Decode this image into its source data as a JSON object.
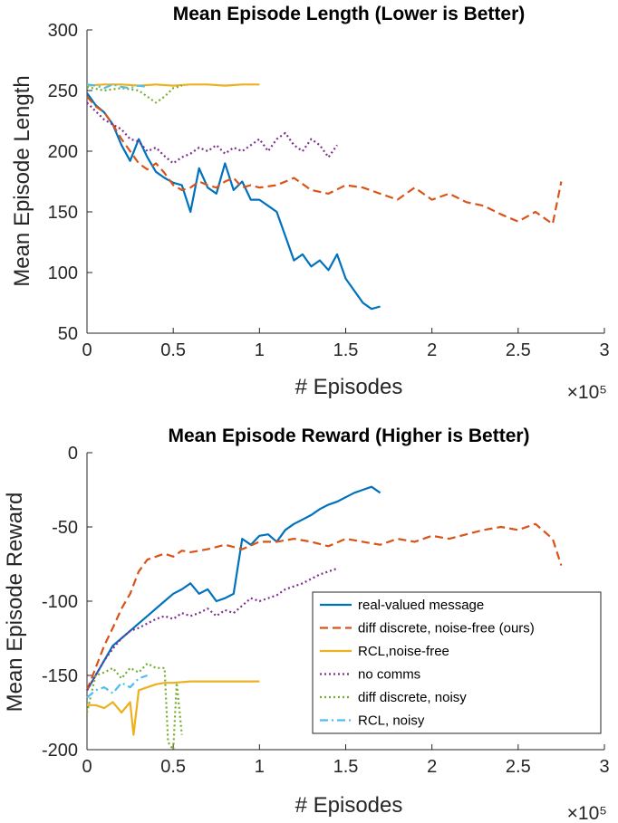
{
  "chart_data": [
    {
      "type": "line",
      "title": "Mean Episode Length (Lower is Better)",
      "xlabel": "# Episodes",
      "ylabel": "Mean Episode Length",
      "x_exponent": "×10⁵",
      "x_multiplier": 100000,
      "xlim": [
        0,
        3
      ],
      "ylim": [
        50,
        300
      ],
      "xticks": [
        0,
        0.5,
        1,
        1.5,
        2,
        2.5,
        3
      ],
      "xtick_labels": [
        "0",
        "0.5",
        "1",
        "1.5",
        "2",
        "2.5",
        "3"
      ],
      "yticks": [
        50,
        100,
        150,
        200,
        250,
        300
      ],
      "ytick_labels": [
        "50",
        "100",
        "150",
        "200",
        "250",
        "300"
      ],
      "grid": false,
      "series": [
        {
          "name": "real-valued message",
          "color": "#0072BD",
          "dash": "solid",
          "x": [
            0,
            0.05,
            0.1,
            0.15,
            0.2,
            0.25,
            0.3,
            0.35,
            0.4,
            0.45,
            0.5,
            0.55,
            0.6,
            0.65,
            0.7,
            0.75,
            0.8,
            0.85,
            0.9,
            0.95,
            1.0,
            1.05,
            1.1,
            1.15,
            1.2,
            1.25,
            1.3,
            1.35,
            1.4,
            1.45,
            1.5,
            1.55,
            1.6,
            1.65,
            1.7
          ],
          "y": [
            248,
            238,
            232,
            222,
            205,
            192,
            210,
            195,
            183,
            178,
            174,
            172,
            150,
            186,
            170,
            165,
            190,
            168,
            175,
            160,
            160,
            155,
            150,
            130,
            110,
            115,
            105,
            110,
            102,
            115,
            95,
            85,
            75,
            70,
            72
          ]
        },
        {
          "name": "diff discrete, noise-free (ours)",
          "color": "#D95319",
          "dash": "dashed",
          "x": [
            0,
            0.05,
            0.1,
            0.15,
            0.2,
            0.25,
            0.3,
            0.35,
            0.4,
            0.45,
            0.5,
            0.55,
            0.6,
            0.65,
            0.7,
            0.75,
            0.8,
            0.85,
            0.9,
            0.95,
            1.0,
            1.1,
            1.2,
            1.3,
            1.4,
            1.5,
            1.6,
            1.7,
            1.8,
            1.9,
            2.0,
            2.1,
            2.2,
            2.3,
            2.4,
            2.5,
            2.6,
            2.7,
            2.75
          ],
          "y": [
            245,
            237,
            232,
            222,
            210,
            200,
            190,
            185,
            190,
            182,
            172,
            168,
            170,
            175,
            172,
            170,
            175,
            178,
            170,
            172,
            170,
            172,
            178,
            168,
            165,
            172,
            170,
            165,
            160,
            170,
            160,
            165,
            158,
            155,
            148,
            142,
            150,
            140,
            175
          ]
        },
        {
          "name": "RCL,noise-free",
          "color": "#EDB120",
          "dash": "solid",
          "x": [
            0,
            0.1,
            0.2,
            0.3,
            0.4,
            0.5,
            0.6,
            0.7,
            0.8,
            0.9,
            1.0
          ],
          "y": [
            254,
            255,
            255,
            254,
            255,
            254,
            255,
            255,
            254,
            255,
            255
          ]
        },
        {
          "name": "no comms",
          "color": "#7E2F8E",
          "dash": "dotted",
          "x": [
            0,
            0.05,
            0.1,
            0.15,
            0.2,
            0.25,
            0.3,
            0.35,
            0.4,
            0.45,
            0.5,
            0.55,
            0.6,
            0.65,
            0.7,
            0.75,
            0.8,
            0.85,
            0.9,
            0.95,
            1.0,
            1.05,
            1.1,
            1.15,
            1.2,
            1.25,
            1.3,
            1.35,
            1.4,
            1.45
          ],
          "y": [
            240,
            233,
            226,
            222,
            218,
            210,
            208,
            200,
            203,
            196,
            190,
            195,
            198,
            203,
            200,
            205,
            198,
            203,
            200,
            205,
            210,
            200,
            210,
            215,
            205,
            200,
            210,
            205,
            195,
            205
          ]
        },
        {
          "name": "diff discrete, noisy",
          "color": "#77AC30",
          "dash": "dotted",
          "x": [
            0,
            0.1,
            0.2,
            0.3,
            0.35,
            0.4,
            0.45,
            0.5,
            0.55
          ],
          "y": [
            253,
            250,
            252,
            250,
            245,
            240,
            245,
            252,
            254
          ]
        },
        {
          "name": "RCL, noisy",
          "color": "#4DBEEE",
          "dash": "dashdot",
          "x": [
            0,
            0.05,
            0.1,
            0.15,
            0.2,
            0.25,
            0.3,
            0.35
          ],
          "y": [
            255,
            254,
            252,
            255,
            253,
            252,
            254,
            253
          ]
        }
      ]
    },
    {
      "type": "line",
      "title": "Mean Episode Reward (Higher is Better)",
      "xlabel": "# Episodes",
      "ylabel": "Mean Episode Reward",
      "x_exponent": "×10⁵",
      "x_multiplier": 100000,
      "xlim": [
        0,
        3
      ],
      "ylim": [
        -200,
        0
      ],
      "xticks": [
        0,
        0.5,
        1,
        1.5,
        2,
        2.5,
        3
      ],
      "xtick_labels": [
        "0",
        "0.5",
        "1",
        "1.5",
        "2",
        "2.5",
        "3"
      ],
      "yticks": [
        -200,
        -150,
        -100,
        -50,
        0
      ],
      "ytick_labels": [
        "-200",
        "-150",
        "-100",
        "-50",
        "0"
      ],
      "grid": false,
      "legend_position": "bottom-right",
      "series": [
        {
          "name": "real-valued message",
          "color": "#0072BD",
          "dash": "solid",
          "x": [
            0,
            0.05,
            0.1,
            0.15,
            0.2,
            0.25,
            0.3,
            0.35,
            0.4,
            0.45,
            0.5,
            0.55,
            0.6,
            0.65,
            0.7,
            0.75,
            0.8,
            0.85,
            0.9,
            0.95,
            1.0,
            1.05,
            1.1,
            1.15,
            1.2,
            1.25,
            1.3,
            1.35,
            1.4,
            1.45,
            1.5,
            1.55,
            1.6,
            1.65,
            1.7
          ],
          "y": [
            -160,
            -150,
            -140,
            -130,
            -125,
            -120,
            -115,
            -110,
            -105,
            -100,
            -95,
            -92,
            -88,
            -95,
            -92,
            -100,
            -98,
            -95,
            -58,
            -62,
            -56,
            -55,
            -60,
            -52,
            -48,
            -45,
            -42,
            -38,
            -35,
            -33,
            -30,
            -27,
            -25,
            -23,
            -27
          ]
        },
        {
          "name": "diff discrete, noise-free (ours)",
          "color": "#D95319",
          "dash": "dashed",
          "x": [
            0,
            0.05,
            0.1,
            0.15,
            0.2,
            0.25,
            0.3,
            0.35,
            0.4,
            0.45,
            0.5,
            0.55,
            0.6,
            0.7,
            0.8,
            0.9,
            1.0,
            1.1,
            1.2,
            1.3,
            1.4,
            1.5,
            1.6,
            1.7,
            1.8,
            1.9,
            2.0,
            2.1,
            2.2,
            2.3,
            2.4,
            2.5,
            2.6,
            2.7,
            2.75
          ],
          "y": [
            -160,
            -145,
            -130,
            -118,
            -105,
            -95,
            -80,
            -72,
            -70,
            -68,
            -70,
            -66,
            -67,
            -65,
            -62,
            -65,
            -60,
            -60,
            -58,
            -60,
            -63,
            -58,
            -60,
            -62,
            -58,
            -60,
            -56,
            -58,
            -55,
            -52,
            -50,
            -52,
            -48,
            -58,
            -76
          ]
        },
        {
          "name": "RCL,noise-free",
          "color": "#EDB120",
          "dash": "solid",
          "x": [
            0,
            0.05,
            0.1,
            0.15,
            0.2,
            0.25,
            0.27,
            0.3,
            0.35,
            0.4,
            0.45,
            0.5,
            0.6,
            0.7,
            0.8,
            0.9,
            1.0
          ],
          "y": [
            -170,
            -170,
            -172,
            -168,
            -175,
            -168,
            -190,
            -160,
            -158,
            -156,
            -155,
            -155,
            -154,
            -154,
            -154,
            -154,
            -154
          ]
        },
        {
          "name": "no comms",
          "color": "#7E2F8E",
          "dash": "dotted",
          "x": [
            0,
            0.05,
            0.1,
            0.15,
            0.2,
            0.25,
            0.3,
            0.35,
            0.4,
            0.45,
            0.5,
            0.55,
            0.6,
            0.65,
            0.7,
            0.75,
            0.8,
            0.85,
            0.9,
            0.95,
            1.0,
            1.05,
            1.1,
            1.15,
            1.2,
            1.25,
            1.3,
            1.35,
            1.4,
            1.45
          ],
          "y": [
            -160,
            -150,
            -140,
            -132,
            -125,
            -120,
            -118,
            -115,
            -112,
            -110,
            -112,
            -108,
            -110,
            -108,
            -105,
            -110,
            -106,
            -108,
            -103,
            -98,
            -100,
            -98,
            -96,
            -92,
            -90,
            -88,
            -85,
            -82,
            -80,
            -78
          ]
        },
        {
          "name": "diff discrete, noisy",
          "color": "#77AC30",
          "dash": "dotted",
          "x": [
            0,
            0.05,
            0.1,
            0.15,
            0.2,
            0.25,
            0.3,
            0.35,
            0.4,
            0.45,
            0.47,
            0.5,
            0.52,
            0.55
          ],
          "y": [
            -175,
            -150,
            -148,
            -145,
            -152,
            -145,
            -148,
            -142,
            -145,
            -145,
            -195,
            -200,
            -155,
            -190
          ]
        },
        {
          "name": "RCL, noisy",
          "color": "#4DBEEE",
          "dash": "dashdot",
          "x": [
            0,
            0.05,
            0.1,
            0.15,
            0.2,
            0.25,
            0.3,
            0.35
          ],
          "y": [
            -165,
            -160,
            -158,
            -162,
            -155,
            -158,
            -152,
            -150
          ]
        }
      ]
    }
  ]
}
